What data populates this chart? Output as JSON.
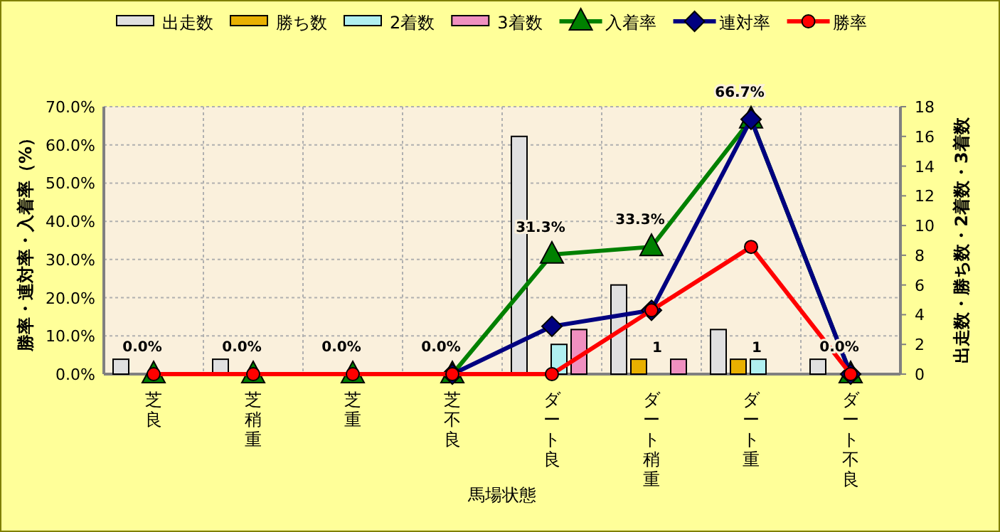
{
  "chart_data": {
    "type": "bar",
    "categories": [
      "芝良",
      "芝稍重",
      "芝重",
      "芝不良",
      "ダート良",
      "ダート稍重",
      "ダート重",
      "ダート不良"
    ],
    "xlabel": "馬場状態",
    "ylabel": "勝率・連対率・入着率（%）",
    "y2label": "出走数・勝ち数・2着数・3着数",
    "ylim": [
      0,
      70
    ],
    "yticks": [
      {
        "value": 0,
        "label": "0.0%"
      },
      {
        "value": 10,
        "label": "10.0%"
      },
      {
        "value": 20,
        "label": "20.0%"
      },
      {
        "value": 30,
        "label": "30.0%"
      },
      {
        "value": 40,
        "label": "40.0%"
      },
      {
        "value": 50,
        "label": "50.0%"
      },
      {
        "value": 60,
        "label": "60.0%"
      },
      {
        "value": 70,
        "label": "70.0%"
      }
    ],
    "y2lim": [
      0,
      18
    ],
    "y2ticks": [
      0,
      2,
      4,
      6,
      8,
      10,
      12,
      14,
      16,
      18
    ],
    "grid": true,
    "legend": "top",
    "series": [
      {
        "name": "出走数",
        "axis": "y2",
        "color": "#e0e0e0",
        "values": [
          1,
          1,
          0,
          0,
          16,
          6,
          3,
          1
        ]
      },
      {
        "name": "勝ち数",
        "axis": "y2",
        "color": "#e8b000",
        "values": [
          0,
          0,
          0,
          0,
          0,
          1,
          1,
          0
        ],
        "value_labels": [
          null,
          null,
          null,
          null,
          null,
          "1",
          "1",
          null
        ]
      },
      {
        "name": "2着数",
        "axis": "y2",
        "color": "#b0f0f0",
        "values": [
          0,
          0,
          0,
          0,
          2,
          0,
          1,
          0
        ]
      },
      {
        "name": "3着数",
        "axis": "y2",
        "color": "#f090c0",
        "values": [
          0,
          0,
          0,
          0,
          3,
          1,
          0,
          0
        ]
      },
      {
        "name": "入着率",
        "type": "line",
        "marker": "triangle",
        "color": "#008000",
        "values": [
          0,
          0,
          0,
          0,
          31.3,
          33.3,
          66.7,
          0
        ],
        "value_labels": [
          "0.0%",
          "0.0%",
          "0.0%",
          "0.0%",
          "31.3%",
          "33.3%",
          "66.7%",
          "0.0%"
        ]
      },
      {
        "name": "連対率",
        "type": "line",
        "marker": "diamond",
        "color": "#000080",
        "values": [
          null,
          null,
          null,
          0,
          12.5,
          16.7,
          66.7,
          0
        ]
      },
      {
        "name": "勝率",
        "type": "line",
        "marker": "circle",
        "color": "#ff0000",
        "values": [
          0,
          0,
          0,
          0,
          0,
          16.7,
          33.3,
          0
        ]
      }
    ]
  }
}
